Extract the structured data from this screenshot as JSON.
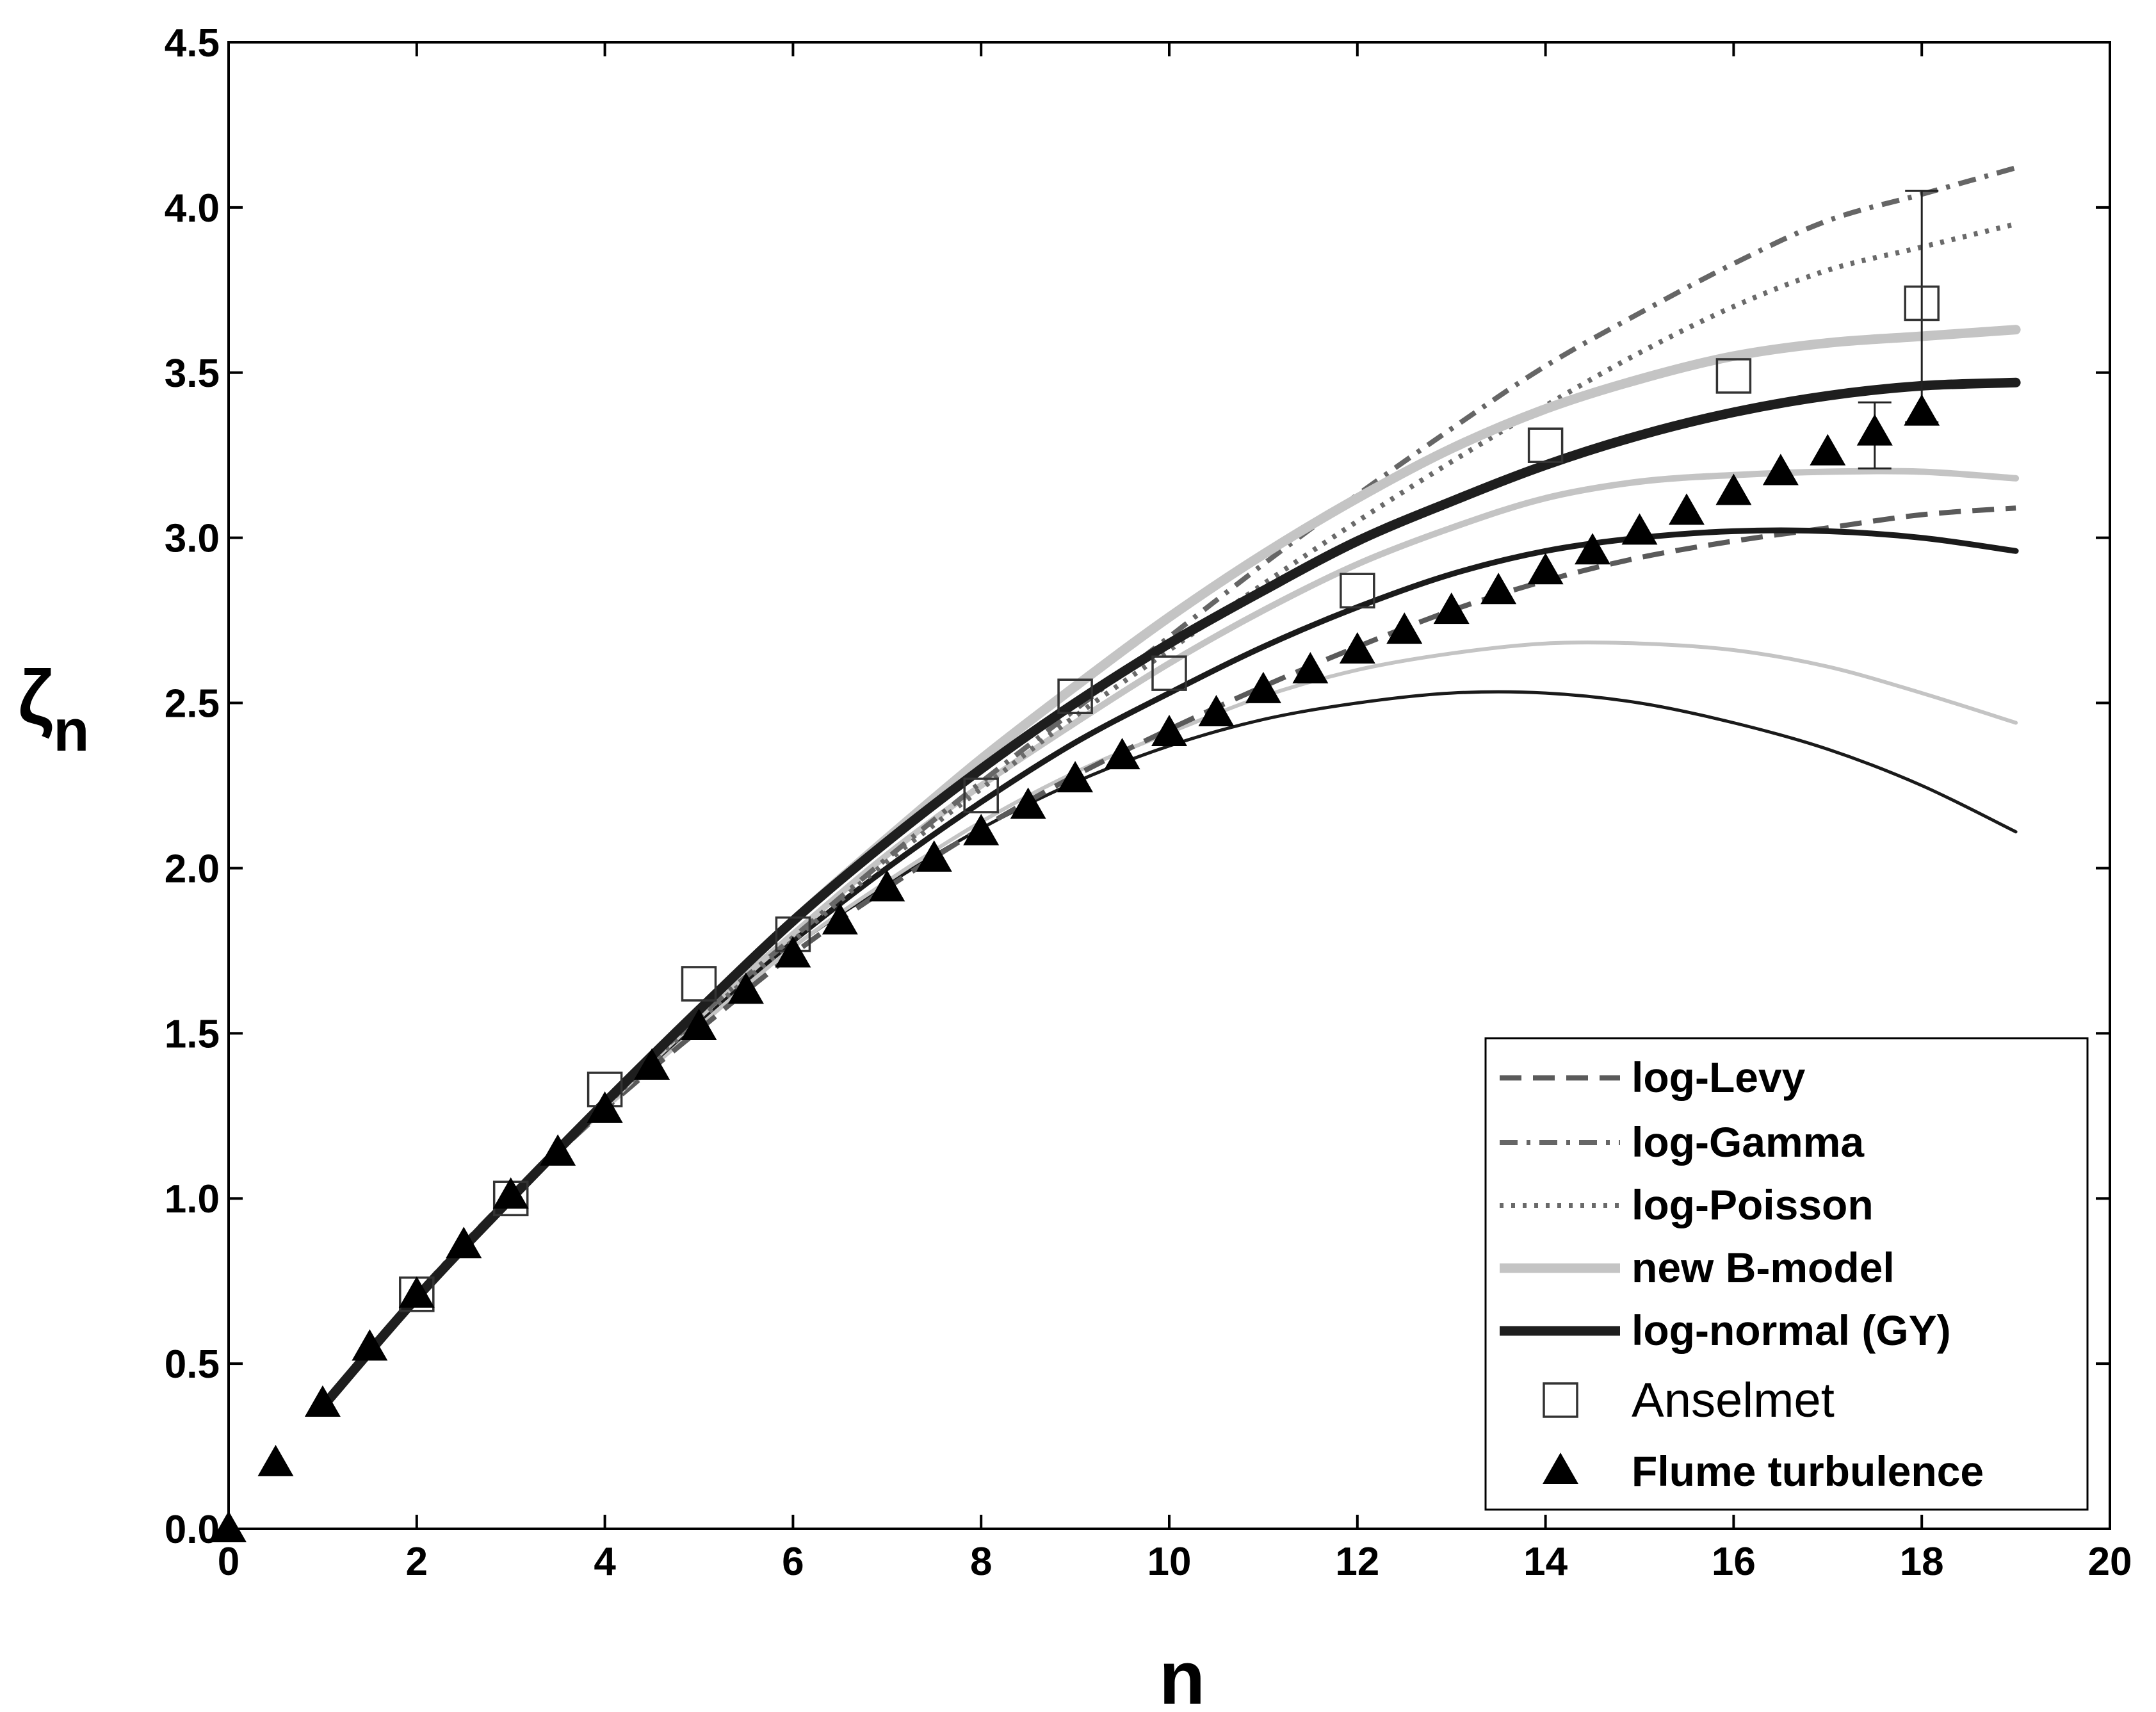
{
  "chart_data": {
    "type": "line",
    "title": "",
    "xlabel": "n",
    "ylabel": "ζn",
    "ylabel_main": "ζ",
    "ylabel_sub": "n",
    "xlim": [
      0,
      20
    ],
    "ylim": [
      0.0,
      4.5
    ],
    "xticks": [
      0,
      2,
      4,
      6,
      8,
      10,
      12,
      14,
      16,
      18,
      20
    ],
    "xtick_labels": [
      "0",
      "2",
      "4",
      "6",
      "8",
      "10",
      "12",
      "14",
      "16",
      "18",
      "20"
    ],
    "yticks": [
      0.0,
      0.5,
      1.0,
      1.5,
      2.0,
      2.5,
      3.0,
      3.5,
      4.0,
      4.5
    ],
    "ytick_labels": [
      "0.0",
      "0.5",
      "1.0",
      "1.5",
      "2.0",
      "2.5",
      "3.0",
      "3.5",
      "4.0",
      "4.5"
    ],
    "grid": false,
    "legend_position": "bottom-right",
    "series": [
      {
        "name": "log-normal (GY) thin",
        "legend": false,
        "color": "#1a1a1a",
        "width": 5,
        "dash": "",
        "x": [
          1,
          2,
          3,
          4,
          5,
          6,
          7,
          8,
          9,
          10,
          11,
          12,
          13,
          14,
          15,
          16,
          17,
          18,
          19
        ],
        "y": [
          0.37,
          0.7,
          1.0,
          1.27,
          1.52,
          1.76,
          1.95,
          2.12,
          2.26,
          2.37,
          2.45,
          2.5,
          2.53,
          2.53,
          2.5,
          2.44,
          2.36,
          2.25,
          2.11
        ]
      },
      {
        "name": "new B-model thin",
        "legend": false,
        "color": "#c4c4c4",
        "width": 6,
        "dash": "",
        "x": [
          1,
          2,
          3,
          4,
          5,
          6,
          7,
          8,
          9,
          10,
          11,
          12,
          13,
          14,
          15,
          16,
          17,
          18,
          19
        ],
        "y": [
          0.37,
          0.7,
          1.0,
          1.27,
          1.52,
          1.76,
          1.96,
          2.14,
          2.29,
          2.41,
          2.52,
          2.6,
          2.65,
          2.68,
          2.68,
          2.66,
          2.61,
          2.53,
          2.44
        ]
      },
      {
        "name": "log-Levy",
        "legend": true,
        "color": "#5a5a5a",
        "width": 8,
        "dash": "34,18",
        "x": [
          1,
          2,
          3,
          4,
          5,
          6,
          7,
          8,
          9,
          10,
          11,
          12,
          13,
          14,
          15,
          16,
          17,
          18,
          19
        ],
        "y": [
          0.37,
          0.7,
          1.0,
          1.27,
          1.51,
          1.74,
          1.94,
          2.12,
          2.28,
          2.42,
          2.55,
          2.67,
          2.78,
          2.87,
          2.94,
          2.99,
          3.03,
          3.07,
          3.09
        ]
      },
      {
        "name": "log-normal (GY) medium",
        "legend": false,
        "color": "#1a1a1a",
        "width": 9,
        "dash": "",
        "x": [
          1,
          2,
          3,
          4,
          5,
          6,
          7,
          8,
          9,
          10,
          11,
          12,
          13,
          14,
          15,
          16,
          17,
          18,
          19
        ],
        "y": [
          0.37,
          0.7,
          1.0,
          1.28,
          1.54,
          1.78,
          2.0,
          2.2,
          2.38,
          2.53,
          2.67,
          2.79,
          2.89,
          2.96,
          3.0,
          3.02,
          3.02,
          3.0,
          2.96
        ]
      },
      {
        "name": "new B-model medium",
        "legend": false,
        "color": "#c4c4c4",
        "width": 10,
        "dash": "",
        "x": [
          1,
          2,
          3,
          4,
          5,
          6,
          7,
          8,
          9,
          10,
          11,
          12,
          13,
          14,
          15,
          16,
          17,
          18,
          19
        ],
        "y": [
          0.37,
          0.7,
          1.0,
          1.28,
          1.55,
          1.8,
          2.04,
          2.25,
          2.44,
          2.62,
          2.78,
          2.92,
          3.03,
          3.12,
          3.17,
          3.19,
          3.2,
          3.2,
          3.18
        ]
      },
      {
        "name": "log-Gamma",
        "legend": true,
        "color": "#666666",
        "width": 8,
        "dash": "28,14,6,14",
        "x": [
          1,
          2,
          3,
          4,
          5,
          6,
          7,
          8,
          9,
          10,
          11,
          12,
          13,
          14,
          15,
          16,
          17,
          18,
          19
        ],
        "y": [
          0.37,
          0.71,
          1.01,
          1.29,
          1.55,
          1.79,
          2.03,
          2.26,
          2.48,
          2.7,
          2.92,
          3.13,
          3.33,
          3.52,
          3.68,
          3.83,
          3.96,
          4.04,
          4.12
        ]
      },
      {
        "name": "log-Poisson",
        "legend": true,
        "color": "#6a6a6a",
        "width": 8,
        "dash": "6,12",
        "x": [
          1,
          2,
          3,
          4,
          5,
          6,
          7,
          8,
          9,
          10,
          11,
          12,
          13,
          14,
          15,
          16,
          17,
          18,
          19
        ],
        "y": [
          0.37,
          0.7,
          1.0,
          1.28,
          1.54,
          1.78,
          2.02,
          2.24,
          2.46,
          2.66,
          2.86,
          3.05,
          3.23,
          3.4,
          3.56,
          3.7,
          3.81,
          3.88,
          3.95
        ]
      },
      {
        "name": "new B-model",
        "legend": true,
        "color": "#c4c4c4",
        "width": 15,
        "dash": "",
        "x": [
          1,
          2,
          3,
          4,
          5,
          6,
          7,
          8,
          9,
          10,
          11,
          12,
          13,
          14,
          15,
          16,
          17,
          18,
          19
        ],
        "y": [
          0.37,
          0.7,
          1.0,
          1.29,
          1.57,
          1.84,
          2.09,
          2.33,
          2.55,
          2.76,
          2.95,
          3.12,
          3.27,
          3.39,
          3.48,
          3.55,
          3.59,
          3.61,
          3.63
        ]
      },
      {
        "name": "log-normal (GY)",
        "legend": true,
        "color": "#1e1e1e",
        "width": 15,
        "dash": "",
        "x": [
          1,
          2,
          3,
          4,
          5,
          6,
          7,
          8,
          9,
          10,
          11,
          12,
          13,
          14,
          15,
          16,
          17,
          18,
          19
        ],
        "y": [
          0.37,
          0.7,
          1.0,
          1.29,
          1.57,
          1.84,
          2.08,
          2.3,
          2.5,
          2.68,
          2.84,
          2.99,
          3.11,
          3.22,
          3.31,
          3.38,
          3.43,
          3.46,
          3.47
        ]
      }
    ],
    "scatter": [
      {
        "name": "Anselmet",
        "marker": "open-square",
        "x": [
          2,
          3,
          4,
          5,
          6,
          8,
          9,
          10,
          12,
          14,
          16,
          18
        ],
        "y": [
          0.71,
          1.0,
          1.33,
          1.65,
          1.8,
          2.22,
          2.52,
          2.59,
          2.84,
          3.28,
          3.49,
          3.71
        ],
        "error_bars": [
          {
            "x": 18,
            "low": 3.35,
            "high": 4.05
          }
        ]
      },
      {
        "name": "Flume turbulence",
        "marker": "filled-triangle",
        "x": [
          0,
          0.5,
          1,
          1.5,
          2,
          2.5,
          3,
          3.5,
          4,
          4.5,
          5,
          5.5,
          6,
          6.5,
          7,
          7.5,
          8,
          8.5,
          9,
          9.5,
          10,
          10.5,
          11,
          11.5,
          12,
          12.5,
          13,
          13.5,
          14,
          14.5,
          15,
          15.5,
          16,
          16.5,
          17,
          17.5,
          18
        ],
        "y": [
          0.0,
          0.2,
          0.38,
          0.55,
          0.71,
          0.86,
          1.01,
          1.14,
          1.27,
          1.4,
          1.52,
          1.63,
          1.74,
          1.84,
          1.94,
          2.03,
          2.11,
          2.19,
          2.27,
          2.34,
          2.41,
          2.47,
          2.54,
          2.6,
          2.66,
          2.72,
          2.78,
          2.84,
          2.9,
          2.96,
          3.02,
          3.08,
          3.14,
          3.2,
          3.26,
          3.32,
          3.38
        ],
        "error_bars": [
          {
            "x": 17.5,
            "low": 3.21,
            "high": 3.41
          }
        ]
      }
    ],
    "legend": [
      {
        "label": "log-Levy",
        "style": "dashed"
      },
      {
        "label": "log-Gamma",
        "style": "dashdot"
      },
      {
        "label": "log-Poisson",
        "style": "dotted"
      },
      {
        "label": "new B-model",
        "style": "solid-light"
      },
      {
        "label": "log-normal (GY)",
        "style": "solid-dark"
      },
      {
        "label": "Anselmet",
        "style": "open-square"
      },
      {
        "label": "Flume turbulence",
        "style": "filled-triangle"
      }
    ]
  }
}
